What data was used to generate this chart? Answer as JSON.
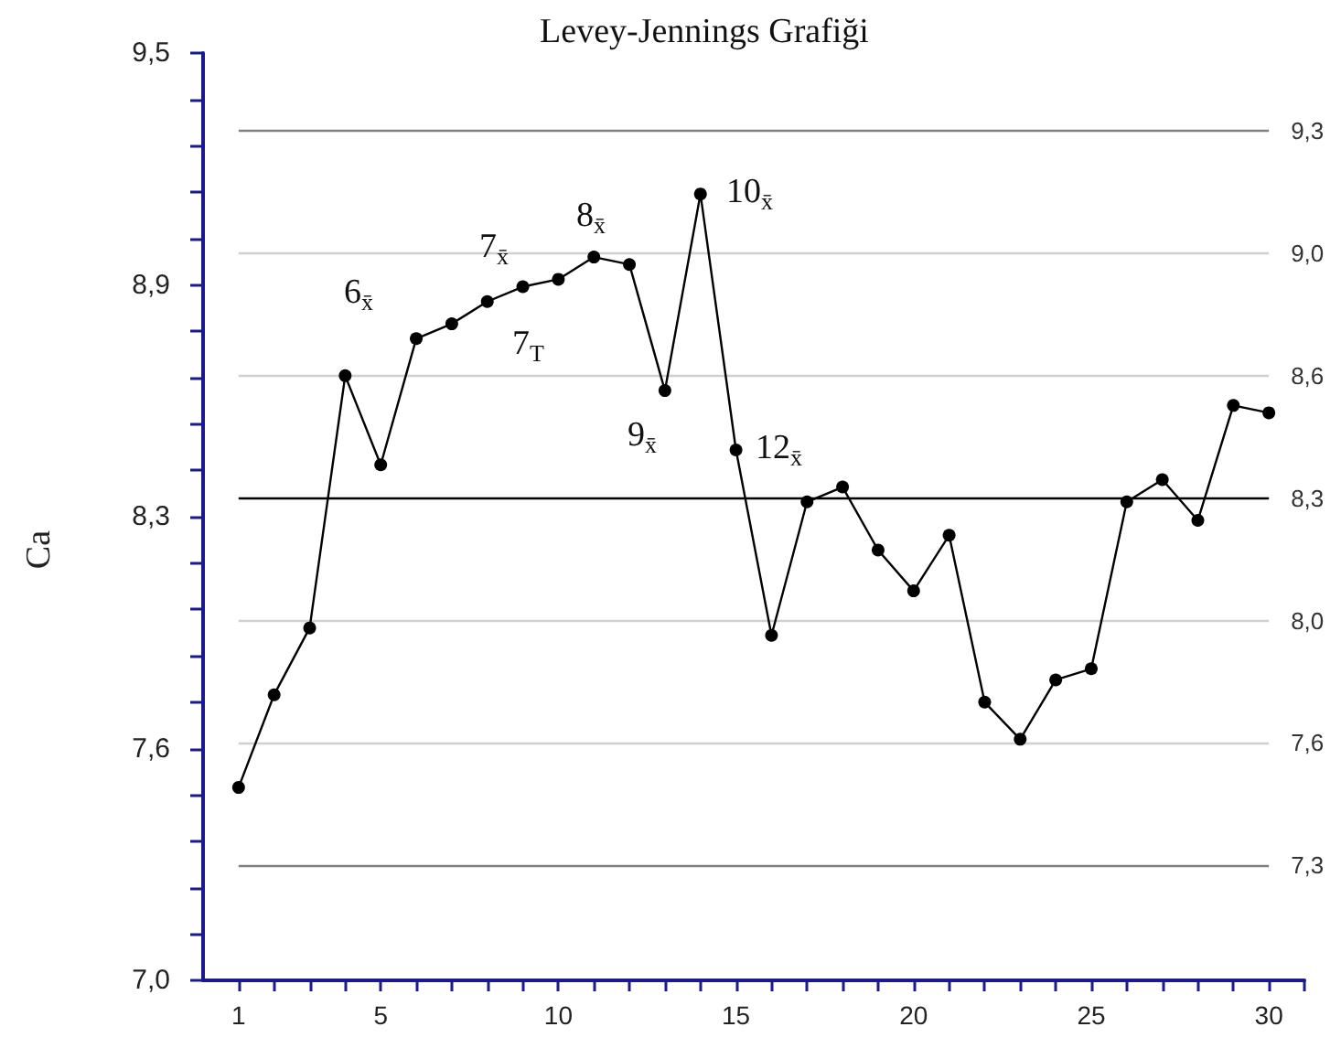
{
  "chart_data": {
    "type": "line",
    "title": "Levey-Jennings Grafiği",
    "ylabel": "Ca",
    "x": [
      1,
      2,
      3,
      4,
      5,
      6,
      7,
      8,
      9,
      10,
      11,
      12,
      13,
      14,
      15,
      16,
      17,
      18,
      19,
      20,
      21,
      22,
      23,
      24,
      25,
      26,
      27,
      28,
      29,
      30
    ],
    "series": [
      {
        "color": "#000000",
        "values": [
          7.52,
          7.77,
          7.95,
          8.63,
          8.39,
          8.73,
          8.77,
          8.83,
          8.87,
          8.89,
          8.95,
          8.93,
          8.59,
          9.12,
          8.43,
          7.93,
          8.29,
          8.33,
          8.16,
          8.05,
          8.2,
          7.75,
          7.65,
          7.81,
          7.84,
          8.29,
          8.35,
          8.24,
          8.55,
          8.53
        ]
      }
    ],
    "marker": "circle",
    "line_style": "solid",
    "grid": false,
    "xlim": [
      0,
      31
    ],
    "xticks": [
      1,
      {
        "value": 2,
        "label": null
      },
      {
        "value": 3,
        "label": null
      },
      {
        "value": 4,
        "label": null
      },
      5,
      {
        "value": 6,
        "label": null
      },
      {
        "value": 7,
        "label": null
      },
      {
        "value": 8,
        "label": null
      },
      {
        "value": 9,
        "label": null
      },
      10,
      {
        "value": 11,
        "label": null
      },
      {
        "value": 12,
        "label": null
      },
      {
        "value": 13,
        "label": null
      },
      {
        "value": 14,
        "label": null
      },
      15,
      {
        "value": 16,
        "label": null
      },
      {
        "value": 17,
        "label": null
      },
      {
        "value": 18,
        "label": null
      },
      {
        "value": 19,
        "label": null
      },
      20,
      {
        "value": 21,
        "label": null
      },
      {
        "value": 22,
        "label": null
      },
      {
        "value": 23,
        "label": null
      },
      {
        "value": 24,
        "label": null
      },
      25,
      {
        "value": 26,
        "label": null
      },
      {
        "value": 27,
        "label": null
      },
      {
        "value": 28,
        "label": null
      },
      {
        "value": 29,
        "label": null
      },
      30,
      {
        "value": 31,
        "label": null
      }
    ],
    "ylim": [
      7.0,
      9.5
    ],
    "yticks": [
      {
        "value": 7.0,
        "label": "7,0"
      },
      {
        "value": 7.125,
        "label": null
      },
      {
        "value": 7.25,
        "label": null
      },
      {
        "value": 7.375,
        "label": null
      },
      {
        "value": 7.5,
        "label": null
      },
      {
        "value": 7.625,
        "label": "7,6"
      },
      {
        "value": 7.75,
        "label": null
      },
      {
        "value": 7.875,
        "label": null
      },
      {
        "value": 8.0,
        "label": null
      },
      {
        "value": 8.125,
        "label": null
      },
      {
        "value": 8.25,
        "label": "8,3"
      },
      {
        "value": 8.375,
        "label": null
      },
      {
        "value": 8.5,
        "label": null
      },
      {
        "value": 8.625,
        "label": null
      },
      {
        "value": 8.75,
        "label": null
      },
      {
        "value": 8.875,
        "label": "8,9"
      },
      {
        "value": 9.0,
        "label": null
      },
      {
        "value": 9.125,
        "label": null
      },
      {
        "value": 9.25,
        "label": null
      },
      {
        "value": 9.375,
        "label": null
      },
      {
        "value": 9.5,
        "label": "9,5"
      }
    ],
    "ref_lines": [
      {
        "axis": "y",
        "value": 9.29,
        "label": "9,3",
        "color": "#808080"
      },
      {
        "axis": "y",
        "value": 8.96,
        "label": "9,0",
        "color": "#d0d0d0"
      },
      {
        "axis": "y",
        "value": 8.63,
        "label": "8,6",
        "color": "#d0d0d0"
      },
      {
        "axis": "y",
        "value": 8.3,
        "label": "8,3",
        "color": "#000000"
      },
      {
        "axis": "y",
        "value": 7.97,
        "label": "8,0",
        "color": "#d0d0d0"
      },
      {
        "axis": "y",
        "value": 7.64,
        "label": "7,6",
        "color": "#d0d0d0"
      },
      {
        "axis": "y",
        "value": 7.31,
        "label": "7,3",
        "color": "#808080"
      }
    ],
    "annotations": [
      "6$_{x̄}$",
      "7$_{x̄}$",
      "7$_{T}$",
      "8$_{x̄}$",
      "9$_{x̄}$",
      "10$_{x̄}$",
      "12$_{x̄}$"
    ]
  }
}
